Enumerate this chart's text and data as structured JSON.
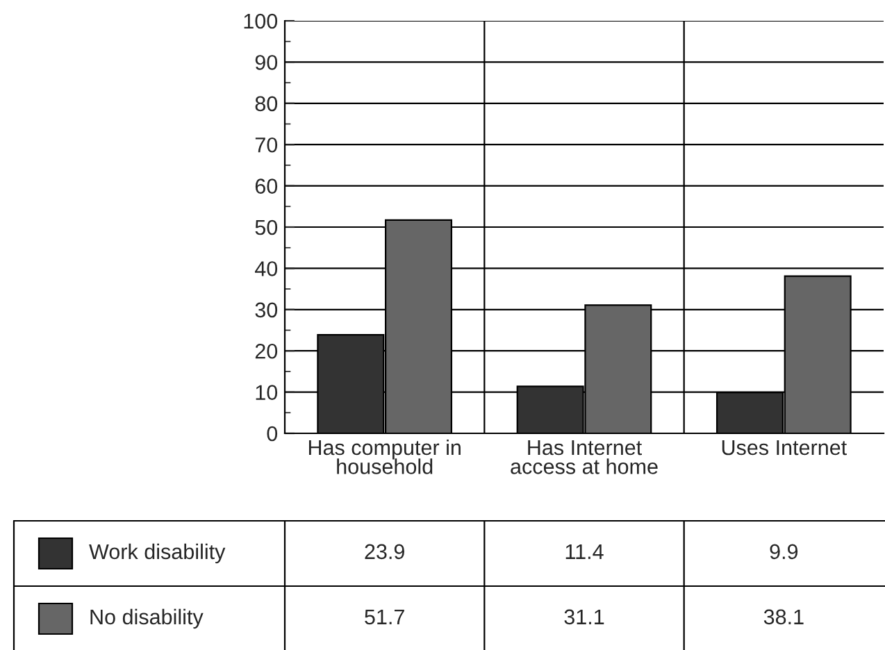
{
  "chart_data": {
    "type": "bar",
    "categories": [
      "Has computer in\nhousehold",
      "Has Internet\naccess at home",
      "Uses Internet"
    ],
    "series": [
      {
        "name": "Work disability",
        "color": "#333333",
        "values": [
          23.9,
          11.4,
          9.9
        ]
      },
      {
        "name": "No disability",
        "color": "#666666",
        "values": [
          51.7,
          31.1,
          38.1
        ]
      }
    ],
    "ylim": [
      0,
      100
    ],
    "yticks": [
      0,
      10,
      20,
      30,
      40,
      50,
      60,
      70,
      80,
      90,
      100
    ],
    "grid": true,
    "legend": "bottom",
    "data_labels": true
  }
}
